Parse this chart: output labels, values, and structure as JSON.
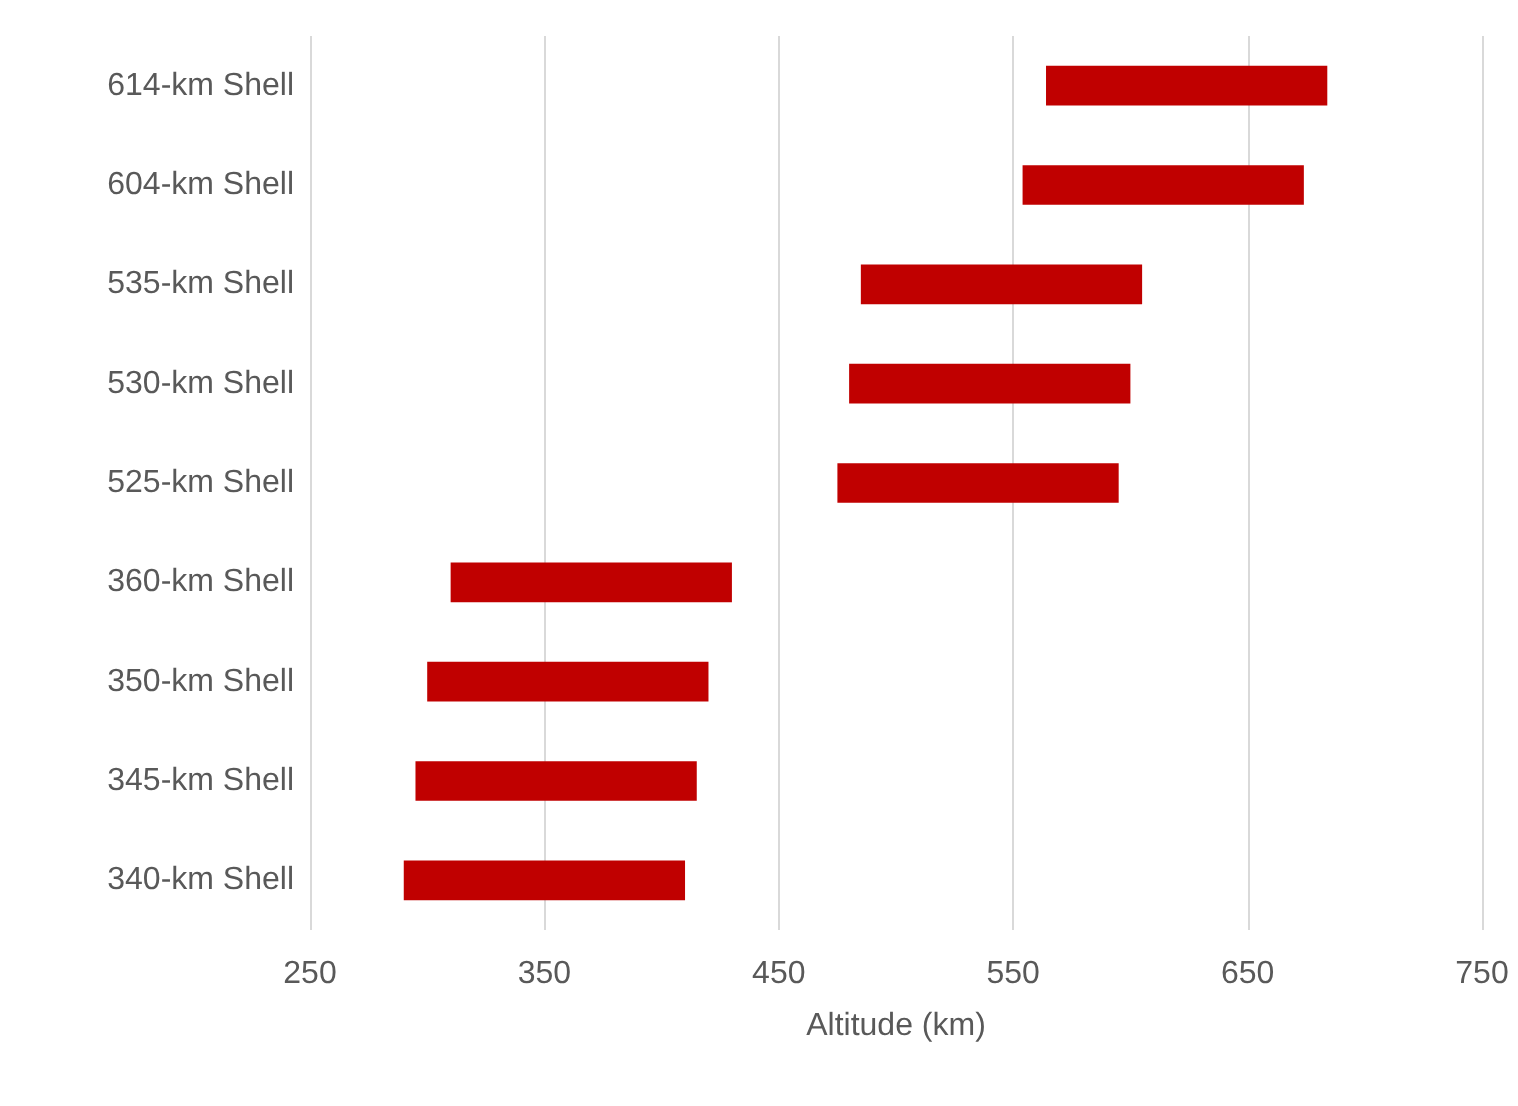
{
  "chart_data": {
    "type": "bar",
    "orientation": "horizontal",
    "xlabel": "Altitude (km)",
    "categories": [
      "614-km Shell",
      "604-km Shell",
      "535-km Shell",
      "530-km Shell",
      "525-km Shell",
      "360-km Shell",
      "350-km Shell",
      "345-km Shell",
      "340-km Shell"
    ],
    "base": [
      564,
      554,
      485,
      480,
      475,
      310,
      300,
      295,
      290
    ],
    "values": [
      120,
      120,
      120,
      120,
      120,
      120,
      120,
      120,
      120
    ],
    "color": "#c00000",
    "xlim": [
      250,
      750
    ],
    "xticks": [
      250,
      350,
      450,
      550,
      650,
      750
    ],
    "grid": "x"
  }
}
